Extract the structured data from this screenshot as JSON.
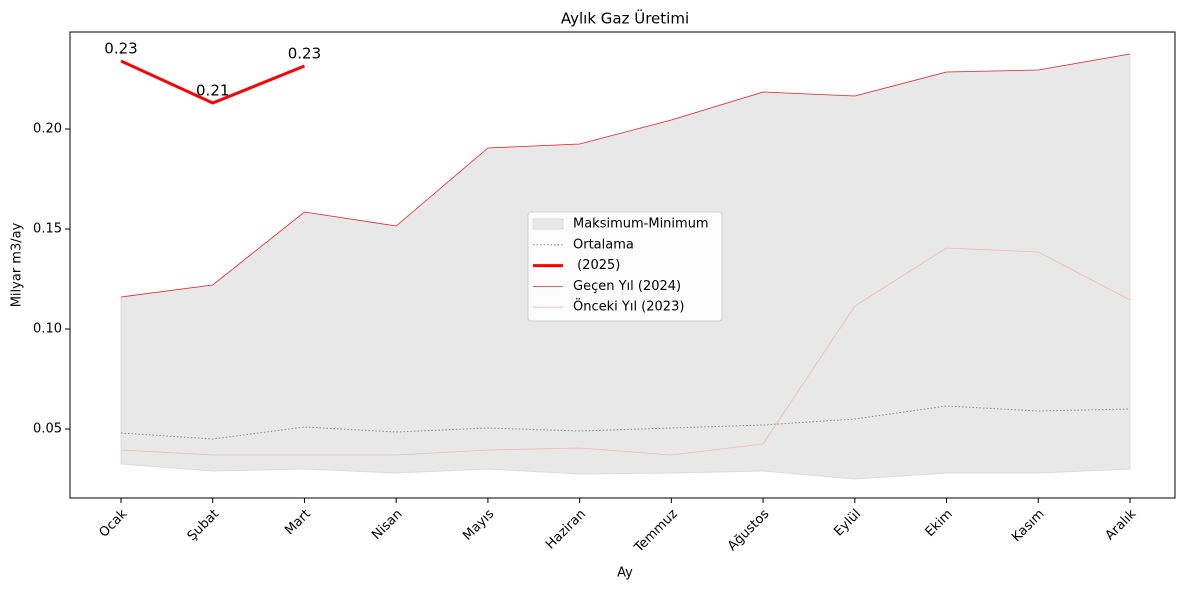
{
  "chart_data": {
    "type": "line",
    "title": "Aylık Gaz Üretimi",
    "x_label": "Ay",
    "y_label": "Milyar m3/ay",
    "categories": [
      "Ocak",
      "Şubat",
      "Mart",
      "Nisan",
      "Mayıs",
      "Haziran",
      "Temmuz",
      "Ağustos",
      "Eylül",
      "Ekim",
      "Kasım",
      "Aralık"
    ],
    "ylim": [
      0.0155,
      0.2485
    ],
    "yticks": [
      0.05,
      {
        "value": 0.1,
        "label": "0.10"
      },
      0.15,
      {
        "value": 0.2,
        "label": "0.20"
      }
    ],
    "grid": false,
    "legend": "center",
    "series": [
      {
        "name": "Maksimum-Minimum",
        "style": "band",
        "color": "#e8e8e8",
        "values": [
          0.116,
          0.122,
          0.1585,
          0.1515,
          0.1905,
          0.1925,
          0.2045,
          0.2185,
          0.2165,
          0.2285,
          0.2295,
          0.2375
        ],
        "lower_values": [
          0.0325,
          0.029,
          0.03,
          0.028,
          0.03,
          0.0275,
          0.028,
          0.029,
          0.025,
          0.028,
          0.028,
          0.03
        ]
      },
      {
        "name": "Ortalama",
        "style": "dotted",
        "color": "#888888",
        "values": [
          0.048,
          0.045,
          0.051,
          0.0485,
          0.0505,
          0.049,
          0.0505,
          0.052,
          0.055,
          0.0615,
          0.059,
          0.06
        ]
      },
      {
        "name": " (2025)",
        "style": "thick",
        "color": "#ff0000",
        "values": [
          0.234,
          0.213,
          0.2315,
          null,
          null,
          null,
          null,
          null,
          null,
          null,
          null,
          null
        ],
        "value_labels": [
          "0.23",
          "0.21",
          "0.23",
          null,
          null,
          null,
          null,
          null,
          null,
          null,
          null,
          null
        ]
      },
      {
        "name": "Geçen Yıl (2024)",
        "style": "thin",
        "color": "#e52b2b",
        "values": [
          0.116,
          0.122,
          0.1585,
          0.1515,
          0.1905,
          0.1925,
          0.2045,
          0.2185,
          0.2165,
          0.2285,
          0.2295,
          0.2375
        ]
      },
      {
        "name": "Önceki Yıl (2023)",
        "style": "thin",
        "color": "#f2b8b8",
        "values": [
          0.0395,
          0.037,
          0.037,
          0.037,
          0.0395,
          0.0405,
          0.037,
          0.0425,
          0.1115,
          0.1405,
          0.1385,
          0.1145
        ]
      }
    ]
  }
}
